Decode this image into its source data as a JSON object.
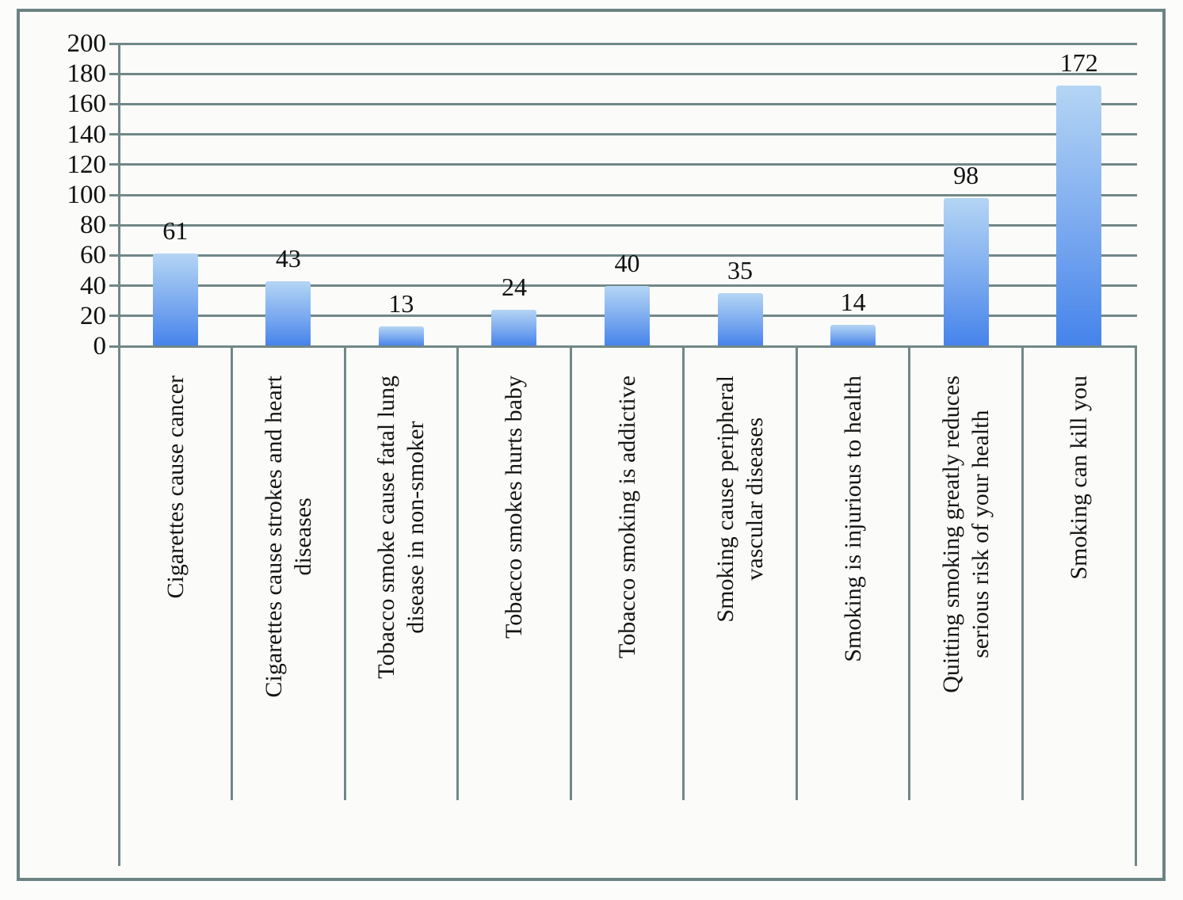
{
  "chart_data": {
    "type": "bar",
    "title": "",
    "xlabel": "",
    "ylabel": "",
    "categories": [
      "Cigarettes cause cancer",
      "Cigarettes cause strokes and heart diseases",
      "Tobacco smoke cause fatal lung disease in non-smoker",
      "Tobacco smokes hurts baby",
      "Tobacco smoking is addictive",
      "Smoking cause peripheral vascular diseases",
      "Smoking is injurious to health",
      "Quitting smoking greatly reduces serious risk of your health",
      "Smoking can kill you"
    ],
    "categories_display": [
      "Cigarettes cause cancer",
      "Cigarettes cause strokes and heart\ndiseases",
      "Tobacco smoke cause fatal lung\ndisease in non-smoker",
      "Tobacco smokes hurts baby",
      "Tobacco smoking is addictive",
      "Smoking cause peripheral\nvascular diseases",
      "Smoking is injurious to health",
      "Quitting smoking greatly reduces\nserious risk of your health",
      "Smoking can kill you"
    ],
    "values": [
      61,
      43,
      13,
      24,
      40,
      35,
      14,
      98,
      172
    ],
    "data_labels": [
      "61",
      "43",
      "13",
      "24",
      "40",
      "35",
      "14",
      "98",
      "172"
    ],
    "ylim": [
      0,
      200
    ],
    "ytick_step": 20,
    "yticks": [
      "0",
      "20",
      "40",
      "60",
      "80",
      "100",
      "120",
      "140",
      "160",
      "180",
      "200"
    ],
    "grid": true,
    "legend": "none",
    "colors": {
      "bar_gradient_top": "#b4d5f4",
      "bar_gradient_bottom": "#4583eb",
      "gridline": "#718787",
      "frame_border": "#6d8383",
      "text": "#111111",
      "background": "#fbfbfa"
    }
  }
}
